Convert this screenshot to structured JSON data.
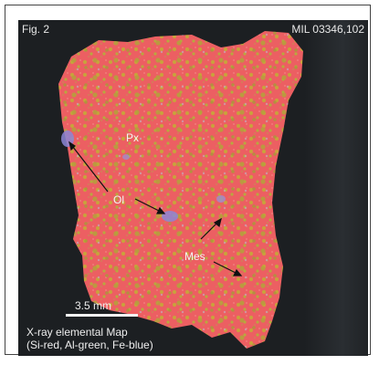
{
  "figure": {
    "label": "Fig. 2",
    "sample_id": "MIL 03346,102",
    "scale_bar_label": "3.5 mm",
    "caption_line1": "X-ray elemental Map",
    "caption_line2": "(Si-red, Al-green, Fe-blue)"
  },
  "annotations": {
    "px": "Px",
    "ol": "Ol",
    "mes": "Mes"
  },
  "colors": {
    "background": "#1c1f22",
    "si_red": "#ec5f62",
    "al_green": "#b8a43a",
    "fe_blue": "#8c86d6",
    "text": "#eeeeee"
  }
}
